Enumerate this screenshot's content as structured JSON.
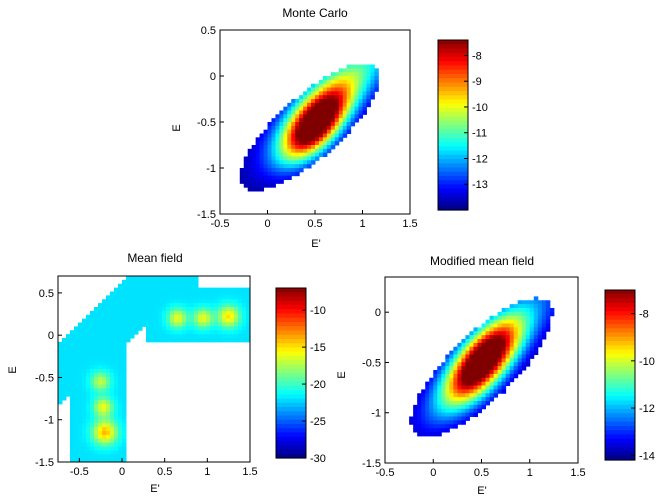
{
  "chart_data": [
    {
      "type": "heatmap",
      "title": "Monte Carlo",
      "xlabel": "E'",
      "ylabel": "E",
      "xlim": [
        -0.5,
        1.5
      ],
      "ylim": [
        -1.5,
        0.5
      ],
      "xticks": [
        "-0.5",
        "0",
        "0.5",
        "1",
        "1.5"
      ],
      "yticks": [
        "0.5",
        "0",
        "-0.5",
        "-1",
        "-1.5"
      ],
      "colorbar": {
        "range": [
          -14,
          -7.4
        ],
        "ticks": [
          "-8",
          "-9",
          "-10",
          "-11",
          "-12",
          "-13"
        ]
      },
      "blobs": [
        {
          "x": 0.5,
          "y": -0.55,
          "sx": 0.23,
          "sy": 0.26,
          "rho": 0.6,
          "amp": 6.3
        },
        {
          "x": 0.7,
          "y": -0.2,
          "sx": 0.45,
          "sy": 0.45,
          "rho": 0.82,
          "amp": 3.5
        }
      ],
      "base": -14.0
    },
    {
      "type": "heatmap",
      "title": "Mean field",
      "xlabel": "E'",
      "ylabel": "E",
      "xlim": [
        -0.75,
        1.5
      ],
      "ylim": [
        -1.5,
        0.7
      ],
      "xticks": [
        "-0.5",
        "0",
        "0.5",
        "1",
        "1.5"
      ],
      "yticks": [
        "0.5",
        "0",
        "-0.5",
        "-1",
        "-1.5"
      ],
      "colorbar": {
        "range": [
          -30,
          -7
        ],
        "ticks": [
          "-10",
          "-15",
          "-20",
          "-25",
          "-30"
        ]
      },
      "blobs": [
        {
          "x": -0.2,
          "y": -1.15,
          "sx": 0.1,
          "sy": 0.1,
          "rho": 0.0,
          "amp": 8
        },
        {
          "x": -0.22,
          "y": -0.85,
          "sx": 0.08,
          "sy": 0.08,
          "rho": 0.0,
          "amp": 6
        },
        {
          "x": -0.25,
          "y": -0.55,
          "sx": 0.08,
          "sy": 0.08,
          "rho": 0.0,
          "amp": 5
        },
        {
          "x": 0.65,
          "y": 0.2,
          "sx": 0.08,
          "sy": 0.08,
          "rho": 0.0,
          "amp": 6
        },
        {
          "x": 0.95,
          "y": 0.2,
          "sx": 0.08,
          "sy": 0.08,
          "rho": 0.0,
          "amp": 6
        },
        {
          "x": 1.25,
          "y": 0.22,
          "sx": 0.09,
          "sy": 0.09,
          "rho": 0.0,
          "amp": 7
        }
      ],
      "base": -22.0
    },
    {
      "type": "heatmap",
      "title": "Modified mean field",
      "xlabel": "E'",
      "ylabel": "E",
      "xlim": [
        -0.5,
        1.5
      ],
      "ylim": [
        -1.5,
        0.35
      ],
      "xticks": [
        "-0.5",
        "0",
        "0.5",
        "1",
        "1.5"
      ],
      "yticks": [
        "0",
        "-0.5",
        "-1",
        "-1.5"
      ],
      "colorbar": {
        "range": [
          -14.2,
          -7
        ],
        "ticks": [
          "-8",
          "-10",
          "-12",
          "-14"
        ]
      },
      "blobs": [
        {
          "x": 0.5,
          "y": -0.5,
          "sx": 0.25,
          "sy": 0.28,
          "rho": 0.65,
          "amp": 6.6
        },
        {
          "x": 0.6,
          "y": -0.4,
          "sx": 0.45,
          "sy": 0.45,
          "rho": 0.85,
          "amp": 3.0
        }
      ],
      "base": -14.2
    }
  ]
}
